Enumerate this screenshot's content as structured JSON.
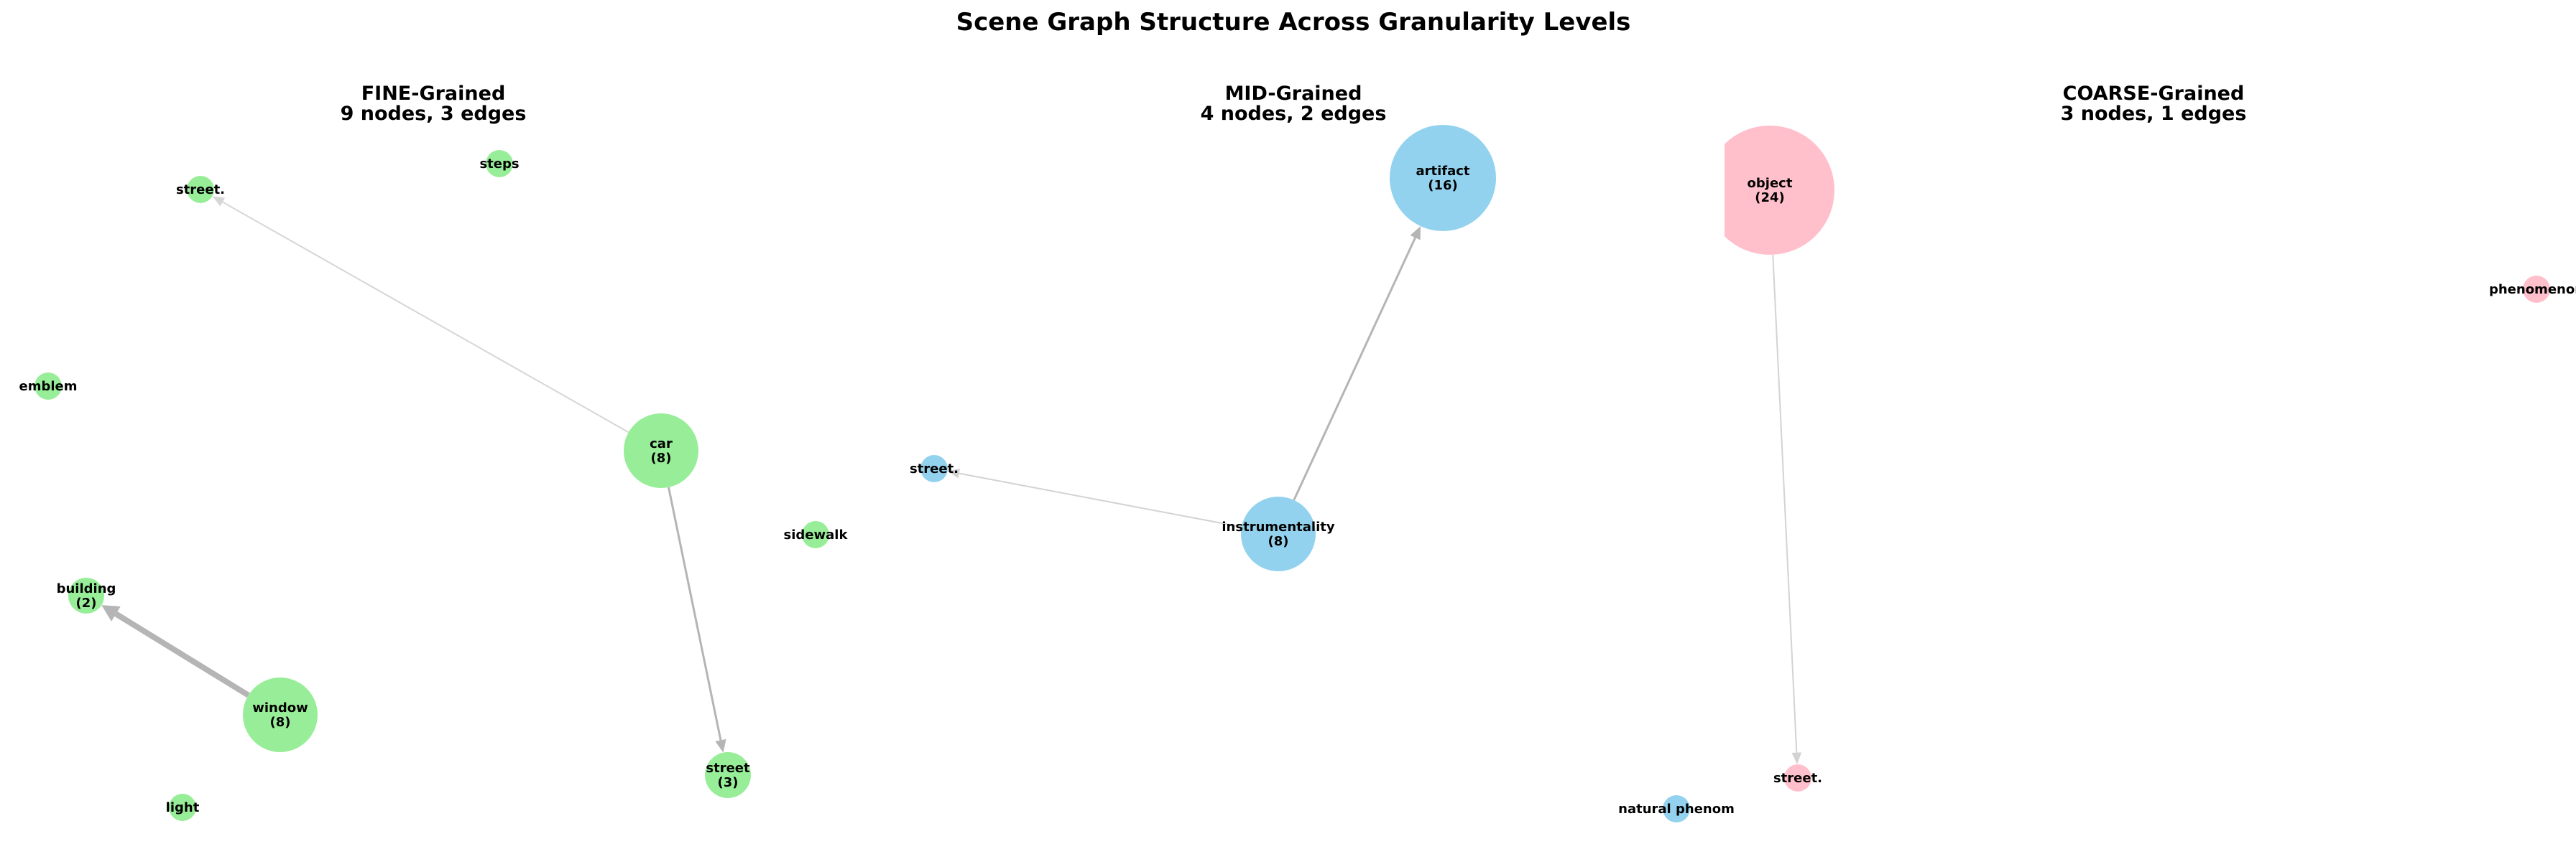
{
  "title": "Scene Graph Structure Across Granularity Levels",
  "colors": {
    "fine": "#98ee98",
    "mid": "#93d2ee",
    "coarse": "#ffbfcb",
    "edge": "#b5b5b5"
  },
  "panels": [
    {
      "id": "fine",
      "title": "FINE-Grained",
      "subtitle": "9 nodes, 3 edges",
      "nodes": [
        {
          "id": "street_dot",
          "lines": [
            "street."
          ],
          "color": "fine"
        },
        {
          "id": "steps",
          "lines": [
            "steps"
          ],
          "color": "fine"
        },
        {
          "id": "emblem",
          "lines": [
            "emblem"
          ],
          "color": "fine"
        },
        {
          "id": "car",
          "lines": [
            "car",
            "(8)"
          ],
          "color": "fine"
        },
        {
          "id": "sidewalk",
          "lines": [
            "sidewalk"
          ],
          "color": "fine"
        },
        {
          "id": "building",
          "lines": [
            "building",
            "(2)"
          ],
          "color": "fine"
        },
        {
          "id": "window",
          "lines": [
            "window",
            "(8)"
          ],
          "color": "fine"
        },
        {
          "id": "street",
          "lines": [
            "street",
            "(3)"
          ],
          "color": "fine"
        },
        {
          "id": "light",
          "lines": [
            "light"
          ],
          "color": "fine"
        }
      ],
      "edges": [
        {
          "from": "car",
          "to": "street_dot"
        },
        {
          "from": "car",
          "to": "street"
        },
        {
          "from": "window",
          "to": "building"
        }
      ]
    },
    {
      "id": "mid",
      "title": "MID-Grained",
      "subtitle": "4 nodes, 2 edges",
      "nodes": [
        {
          "id": "artifact",
          "lines": [
            "artifact",
            "(16)"
          ],
          "color": "mid"
        },
        {
          "id": "street_dot",
          "lines": [
            "street."
          ],
          "color": "mid"
        },
        {
          "id": "instrumentality",
          "lines": [
            "instrumentality",
            "(8)"
          ],
          "color": "mid"
        },
        {
          "id": "natural_phenomenon",
          "lines": [
            "natural phenom"
          ],
          "color": "mid"
        }
      ],
      "edges": [
        {
          "from": "instrumentality",
          "to": "artifact"
        },
        {
          "from": "instrumentality",
          "to": "street_dot"
        }
      ]
    },
    {
      "id": "coarse",
      "title": "COARSE-Grained",
      "subtitle": "3 nodes, 1 edges",
      "nodes": [
        {
          "id": "object",
          "lines": [
            "object",
            "(24)"
          ],
          "color": "coarse"
        },
        {
          "id": "phenomenon",
          "lines": [
            "phenomenon"
          ],
          "color": "coarse"
        },
        {
          "id": "street_dot",
          "lines": [
            "street."
          ],
          "color": "coarse"
        }
      ],
      "edges": [
        {
          "from": "object",
          "to": "street_dot"
        }
      ]
    }
  ]
}
